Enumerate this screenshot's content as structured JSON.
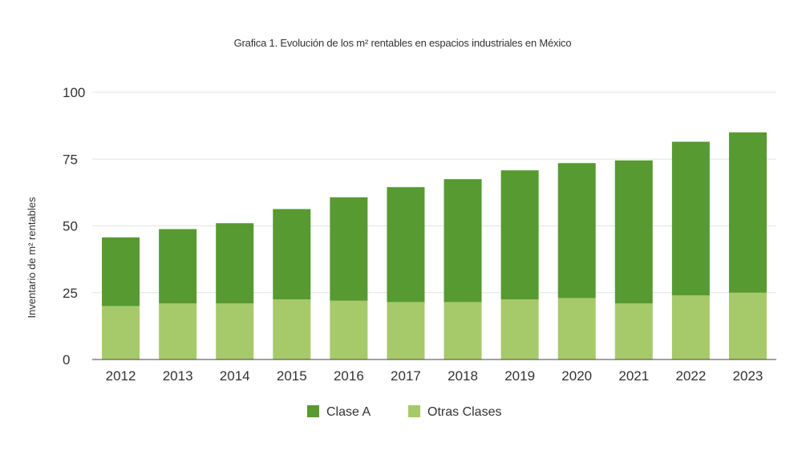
{
  "chart_data": {
    "type": "bar",
    "stacked": true,
    "title": "Grafica 1. Evolución de los m² rentables en espacios industriales en México",
    "xlabel": "",
    "ylabel": "Inventario de m² rentables",
    "ylim": [
      0,
      100
    ],
    "yticks": [
      "0",
      "25",
      "50",
      "75",
      "100"
    ],
    "grid": true,
    "legend_position": "bottom",
    "categories": [
      "2012",
      "2013",
      "2014",
      "2015",
      "2016",
      "2017",
      "2018",
      "2019",
      "2020",
      "2021",
      "2022",
      "2023"
    ],
    "series": [
      {
        "name": "Otras Clases",
        "color": "#a6c96a",
        "values": [
          20,
          21,
          21,
          22.5,
          22,
          21.5,
          21.5,
          22.5,
          23,
          21,
          24,
          25
        ]
      },
      {
        "name": "Clase A",
        "color": "#569a31",
        "values": [
          25.7,
          27.8,
          30,
          33.8,
          38.7,
          43,
          46,
          48.3,
          50.5,
          53.5,
          57.5,
          60
        ]
      }
    ],
    "legend": [
      {
        "label": "Clase A",
        "color": "#569a31"
      },
      {
        "label": "Otras Clases",
        "color": "#a6c96a"
      }
    ]
  }
}
